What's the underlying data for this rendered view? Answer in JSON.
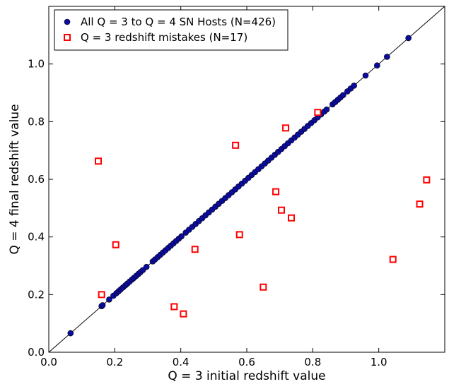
{
  "chart_data": {
    "type": "scatter",
    "title": "",
    "xlabel": "Q = 3 initial redshift value",
    "ylabel": "Q = 4 final redshift value",
    "xlim": [
      0.0,
      1.2
    ],
    "ylim": [
      0.0,
      1.2
    ],
    "xticks": [
      0.0,
      0.2,
      0.4,
      0.6,
      0.8,
      1.0
    ],
    "yticks": [
      0.0,
      0.2,
      0.4,
      0.6,
      0.8,
      1.0
    ],
    "tick_labels": {
      "x": [
        "0.0",
        "0.2",
        "0.4",
        "0.6",
        "0.8",
        "1.0"
      ],
      "y": [
        "0.0",
        "0.2",
        "0.4",
        "0.6",
        "0.8",
        "1.0"
      ]
    },
    "grid": false,
    "legend_position": "top-left",
    "reference_line": {
      "x": [
        0.0,
        1.2
      ],
      "y": [
        0.0,
        1.2
      ],
      "color": "#000000"
    },
    "series": [
      {
        "name": "All Q = 3 to Q = 4 SN Hosts (N=426)",
        "marker": "circle",
        "color": "#0b0b9f",
        "edge_color": "#000000",
        "points": [
          [
            0.066,
            0.066
          ],
          [
            0.16,
            0.16
          ],
          [
            0.163,
            0.163
          ],
          [
            0.183,
            0.183
          ],
          [
            0.196,
            0.196
          ],
          [
            0.205,
            0.205
          ],
          [
            0.212,
            0.212
          ],
          [
            0.218,
            0.218
          ],
          [
            0.225,
            0.225
          ],
          [
            0.232,
            0.232
          ],
          [
            0.238,
            0.238
          ],
          [
            0.245,
            0.245
          ],
          [
            0.252,
            0.252
          ],
          [
            0.258,
            0.258
          ],
          [
            0.265,
            0.265
          ],
          [
            0.272,
            0.272
          ],
          [
            0.278,
            0.278
          ],
          [
            0.285,
            0.285
          ],
          [
            0.296,
            0.296
          ],
          [
            0.315,
            0.315
          ],
          [
            0.322,
            0.322
          ],
          [
            0.33,
            0.33
          ],
          [
            0.338,
            0.338
          ],
          [
            0.346,
            0.346
          ],
          [
            0.354,
            0.354
          ],
          [
            0.362,
            0.362
          ],
          [
            0.37,
            0.37
          ],
          [
            0.378,
            0.378
          ],
          [
            0.386,
            0.386
          ],
          [
            0.394,
            0.394
          ],
          [
            0.402,
            0.402
          ],
          [
            0.415,
            0.415
          ],
          [
            0.425,
            0.425
          ],
          [
            0.435,
            0.435
          ],
          [
            0.445,
            0.445
          ],
          [
            0.455,
            0.455
          ],
          [
            0.465,
            0.465
          ],
          [
            0.475,
            0.475
          ],
          [
            0.485,
            0.485
          ],
          [
            0.495,
            0.495
          ],
          [
            0.505,
            0.505
          ],
          [
            0.515,
            0.515
          ],
          [
            0.525,
            0.525
          ],
          [
            0.535,
            0.535
          ],
          [
            0.545,
            0.545
          ],
          [
            0.555,
            0.555
          ],
          [
            0.565,
            0.565
          ],
          [
            0.575,
            0.575
          ],
          [
            0.585,
            0.585
          ],
          [
            0.595,
            0.595
          ],
          [
            0.605,
            0.605
          ],
          [
            0.615,
            0.615
          ],
          [
            0.625,
            0.625
          ],
          [
            0.635,
            0.635
          ],
          [
            0.645,
            0.645
          ],
          [
            0.655,
            0.655
          ],
          [
            0.665,
            0.665
          ],
          [
            0.675,
            0.675
          ],
          [
            0.685,
            0.685
          ],
          [
            0.695,
            0.695
          ],
          [
            0.705,
            0.705
          ],
          [
            0.715,
            0.715
          ],
          [
            0.725,
            0.725
          ],
          [
            0.735,
            0.735
          ],
          [
            0.745,
            0.745
          ],
          [
            0.755,
            0.755
          ],
          [
            0.765,
            0.765
          ],
          [
            0.775,
            0.775
          ],
          [
            0.785,
            0.785
          ],
          [
            0.795,
            0.795
          ],
          [
            0.805,
            0.805
          ],
          [
            0.815,
            0.815
          ],
          [
            0.825,
            0.825
          ],
          [
            0.835,
            0.835
          ],
          [
            0.842,
            0.842
          ],
          [
            0.86,
            0.86
          ],
          [
            0.868,
            0.868
          ],
          [
            0.876,
            0.876
          ],
          [
            0.884,
            0.884
          ],
          [
            0.892,
            0.892
          ],
          [
            0.905,
            0.905
          ],
          [
            0.915,
            0.915
          ],
          [
            0.925,
            0.925
          ],
          [
            0.96,
            0.96
          ],
          [
            0.995,
            0.995
          ],
          [
            1.025,
            1.025
          ],
          [
            1.09,
            1.09
          ]
        ]
      },
      {
        "name": "Q = 3 redshift mistakes (N=17)",
        "marker": "square",
        "color": "#ff0000",
        "points": [
          [
            0.15,
            0.663
          ],
          [
            0.16,
            0.2
          ],
          [
            0.203,
            0.373
          ],
          [
            0.38,
            0.158
          ],
          [
            0.408,
            0.133
          ],
          [
            0.443,
            0.357
          ],
          [
            0.566,
            0.718
          ],
          [
            0.578,
            0.408
          ],
          [
            0.65,
            0.226
          ],
          [
            0.688,
            0.557
          ],
          [
            0.705,
            0.493
          ],
          [
            0.718,
            0.778
          ],
          [
            0.735,
            0.466
          ],
          [
            0.815,
            0.832
          ],
          [
            1.043,
            0.322
          ],
          [
            1.124,
            0.514
          ],
          [
            1.145,
            0.598
          ]
        ]
      }
    ]
  }
}
